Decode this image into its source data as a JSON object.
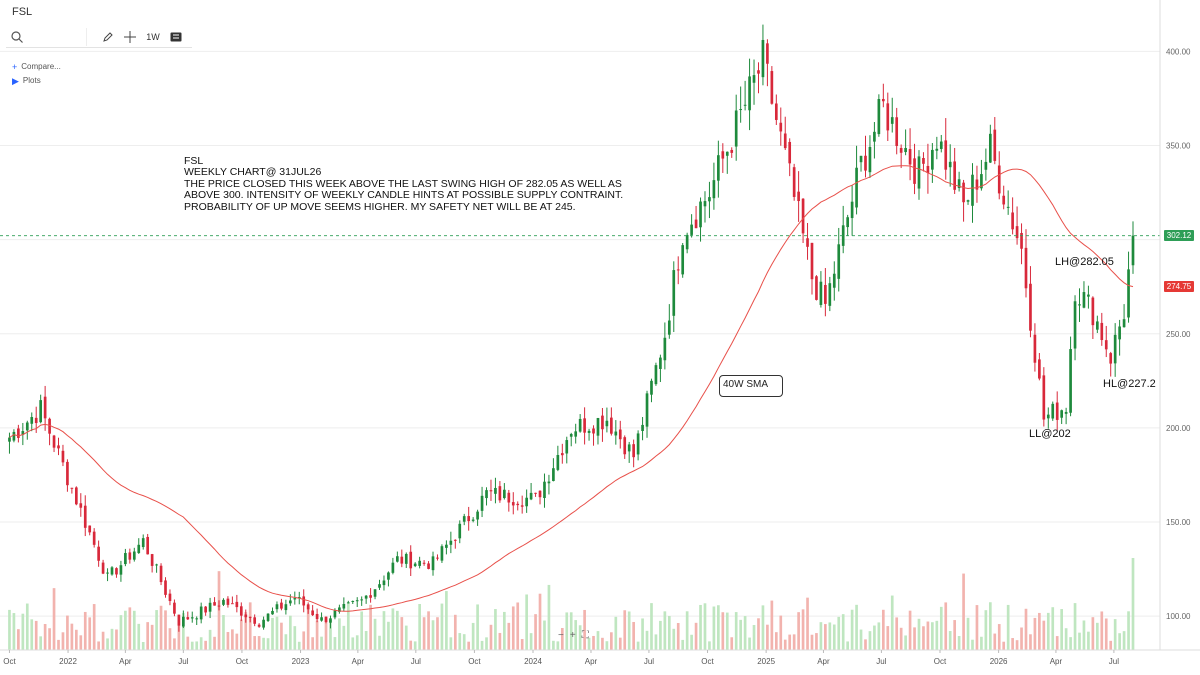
{
  "window": {
    "title": "FSL"
  },
  "toolbar": {
    "search_icon": "search-icon",
    "draw_icon": "pencil-icon",
    "crosshair_icon": "crosshair-icon",
    "period_label": "1W",
    "chart_type_icon": "candle-chart-icon"
  },
  "sidebar": {
    "compare_label": "Compare...",
    "plots_label": "Plots"
  },
  "note": {
    "lines": [
      "FSL",
      "WEEKLY CHART@ 31JUL26",
      "THE PRICE CLOSED THIS WEEK ABOVE THE LAST SWING HIGH OF 282.05 AS WELL AS",
      "ABOVE 300. INTENSITY OF WEEKLY CANDLE HINTS AT POSSIBLE SUPPLY CONTRAINT.",
      "PROBABILITY OF UP MOVE SEEMS HIGHER. MY SAFETY NET WILL BE AT 245."
    ]
  },
  "annotations": {
    "lh": "LH@282.05",
    "hl": "HL@227.2",
    "ll": "LL@202",
    "sma": "40W SMA"
  },
  "price_labels": {
    "last": "302.12",
    "sma": "274.75"
  },
  "zoom": {
    "minus": "−",
    "plus": "+",
    "fit": "⛶"
  },
  "colors": {
    "up": "#1e8a3c",
    "down": "#d8283a",
    "sma": "#e8504a",
    "vol_up": "#bfe6c0",
    "vol_down": "#f2b3ae",
    "last_price_tag": "#2e9e57",
    "sma_tag": "#e53935",
    "grid": "#eeeeee"
  },
  "chart_data": {
    "type": "candlestick",
    "timeframe": "weekly",
    "ylim": [
      75,
      412
    ],
    "yticks": [
      100,
      150,
      200,
      250,
      300,
      350,
      400
    ],
    "ytick_labels": [
      "100.00",
      "150.00",
      "200.00",
      "250.00",
      "",
      "350.00",
      "400.00"
    ],
    "x_ticks": [
      "Oct",
      "2022",
      "Apr",
      "Jul",
      "Oct",
      "2023",
      "Apr",
      "Jul",
      "Oct",
      "2024",
      "Apr",
      "Jul",
      "Oct",
      "2025",
      "Apr",
      "Jul",
      "Oct",
      "2026",
      "Apr",
      "Jul"
    ],
    "legend": "none",
    "grid": true,
    "key_levels": {
      "last_close": 302.12,
      "sma_40w": 274.75
    },
    "anchor_closes": [
      {
        "date": "2021-10-01",
        "close": 195
      },
      {
        "date": "2021-11-19",
        "close": 210
      },
      {
        "date": "2022-01-07",
        "close": 168
      },
      {
        "date": "2022-03-04",
        "close": 120
      },
      {
        "date": "2022-04-29",
        "close": 140
      },
      {
        "date": "2022-06-24",
        "close": 97
      },
      {
        "date": "2022-09-02",
        "close": 108
      },
      {
        "date": "2022-10-28",
        "close": 97
      },
      {
        "date": "2022-12-23",
        "close": 110
      },
      {
        "date": "2023-02-03",
        "close": 98
      },
      {
        "date": "2023-04-07",
        "close": 108
      },
      {
        "date": "2023-05-05",
        "close": 118
      },
      {
        "date": "2023-06-02",
        "close": 130
      },
      {
        "date": "2023-07-28",
        "close": 128
      },
      {
        "date": "2023-10-20",
        "close": 165
      },
      {
        "date": "2024-01-05",
        "close": 162
      },
      {
        "date": "2024-03-01",
        "close": 200
      },
      {
        "date": "2024-04-26",
        "close": 205
      },
      {
        "date": "2024-06-07",
        "close": 185
      },
      {
        "date": "2024-07-26",
        "close": 250
      },
      {
        "date": "2024-08-23",
        "close": 305
      },
      {
        "date": "2024-10-04",
        "close": 325
      },
      {
        "date": "2024-11-15",
        "close": 360
      },
      {
        "date": "2024-12-27",
        "close": 395
      },
      {
        "date": "2025-03-14",
        "close": 280
      },
      {
        "date": "2025-04-04",
        "close": 265
      },
      {
        "date": "2025-05-30",
        "close": 340
      },
      {
        "date": "2025-07-04",
        "close": 370
      },
      {
        "date": "2025-08-29",
        "close": 335
      },
      {
        "date": "2025-09-26",
        "close": 355
      },
      {
        "date": "2025-11-07",
        "close": 318
      },
      {
        "date": "2025-12-19",
        "close": 348
      },
      {
        "date": "2026-02-06",
        "close": 295
      },
      {
        "date": "2026-03-13",
        "close": 205
      },
      {
        "date": "2026-04-17",
        "close": 212
      },
      {
        "date": "2026-05-01",
        "close": 275
      },
      {
        "date": "2026-05-29",
        "close": 262
      },
      {
        "date": "2026-06-26",
        "close": 238
      },
      {
        "date": "2026-07-17",
        "close": 262
      },
      {
        "date": "2026-07-31",
        "close": 302.12
      }
    ]
  }
}
